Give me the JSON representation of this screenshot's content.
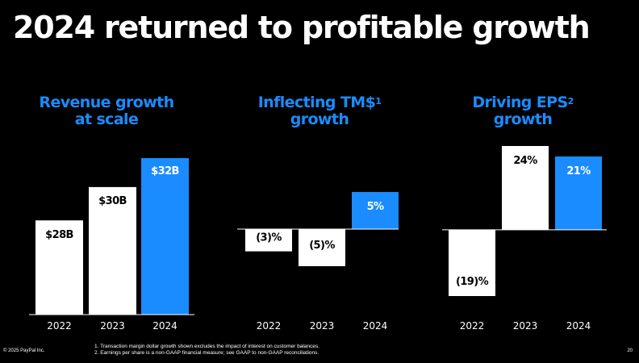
{
  "title": "2024 returned to profitable growth",
  "panels": [
    {
      "title_line1": "Revenue growth",
      "title_line2": "at scale",
      "title_sup": ""
    },
    {
      "title_line1": "Inflecting TM$",
      "title_line2": "growth",
      "title_sup": "1"
    },
    {
      "title_line1": "Driving EPS",
      "title_line2": "growth",
      "title_sup": "2"
    }
  ],
  "chart_data": [
    {
      "type": "bar",
      "title": "Revenue growth at scale",
      "categories": [
        "2022",
        "2023",
        "2024"
      ],
      "values": [
        27.5,
        29.8,
        31.8
      ],
      "labels": [
        "$28B",
        "$30B",
        "$32B"
      ],
      "ylim": [
        21,
        32.8
      ]
    },
    {
      "type": "bar",
      "title": "Inflecting TM$ growth",
      "categories": [
        "2022",
        "2023",
        "2024"
      ],
      "values": [
        -3,
        -5,
        5
      ],
      "labels": [
        "(3)%",
        "(5)%",
        "5%"
      ],
      "ylim": [
        -5,
        5
      ]
    },
    {
      "type": "bar",
      "title": "Driving EPS growth",
      "categories": [
        "2022",
        "2023",
        "2024"
      ],
      "values": [
        -19,
        24,
        21
      ],
      "labels": [
        "(19)%",
        "24%",
        "21%"
      ],
      "ylim": [
        -19,
        24
      ]
    }
  ],
  "colors": {
    "prior": "#ffffff",
    "current": "#1a8cff",
    "background": "#000000"
  },
  "footnotes": [
    "1. Transaction margin dollar growth shown excludes the impact of interest on customer balances.",
    "2. Earnings per share is a non-GAAP financial measure; see GAAP to non-GAAP reconciliations."
  ],
  "copyright": "© 2025 PayPal Inc.",
  "page_number": "20"
}
